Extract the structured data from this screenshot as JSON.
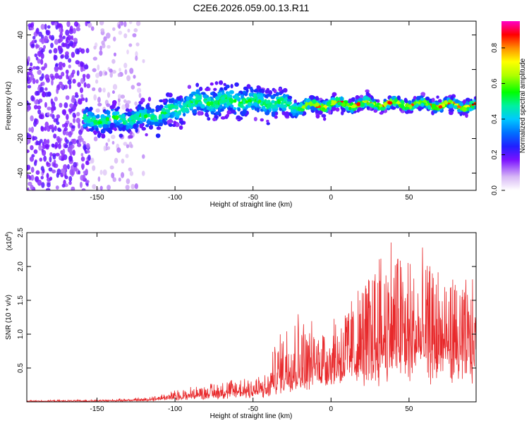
{
  "figure_title": "C2E6.2026.059.00.13.R11",
  "chart_data": [
    {
      "type": "heatmap",
      "xlabel": "Height of straight line (km)",
      "ylabel": "Frequency (Hz)",
      "xlim": [
        -195,
        93
      ],
      "ylim": [
        -50,
        48
      ],
      "xticks": [
        -150,
        -100,
        -50,
        0,
        50
      ],
      "yticks": [
        -40,
        -20,
        0,
        20,
        40
      ],
      "colorbar": {
        "label": "Normalized spectral amplitude",
        "range": [
          0,
          0.95
        ],
        "ticks": [
          0.0,
          0.2,
          0.4,
          0.6,
          0.8
        ]
      },
      "noise_region_x": [
        -195,
        -120
      ],
      "signal_band": [
        {
          "x": -155,
          "center": -10,
          "width": 14
        },
        {
          "x": -120,
          "center": -8,
          "width": 14
        },
        {
          "x": -100,
          "center": -4,
          "width": 16
        },
        {
          "x": -90,
          "center": 1,
          "width": 18
        },
        {
          "x": -60,
          "center": 2,
          "width": 18
        },
        {
          "x": -30,
          "center": 0,
          "width": 16
        },
        {
          "x": -20,
          "center": -2,
          "width": 8
        },
        {
          "x": 0,
          "center": 0,
          "width": 8
        },
        {
          "x": 50,
          "center": 0,
          "width": 7
        },
        {
          "x": 93,
          "center": -1,
          "width": 7
        }
      ]
    },
    {
      "type": "line",
      "xlabel": "Height of straight line (km)",
      "ylabel": "SNR (10 * v/v)",
      "y_scale_label": "(x10",
      "y_scale_exp": "4",
      "y_scale_close": ")",
      "xlim": [
        -195,
        93
      ],
      "ylim": [
        0,
        2.5
      ],
      "xticks": [
        -150,
        -100,
        -50,
        0,
        50
      ],
      "yticks": [
        0.5,
        1.0,
        1.5,
        2.0,
        2.5
      ],
      "series_color": "#e8292b",
      "envelope": [
        {
          "x": -195,
          "base": 0.01,
          "amp": 0.01
        },
        {
          "x": -150,
          "base": 0.01,
          "amp": 0.02
        },
        {
          "x": -120,
          "base": 0.02,
          "amp": 0.04
        },
        {
          "x": -100,
          "base": 0.05,
          "amp": 0.12
        },
        {
          "x": -80,
          "base": 0.08,
          "amp": 0.18
        },
        {
          "x": -60,
          "base": 0.1,
          "amp": 0.28
        },
        {
          "x": -40,
          "base": 0.12,
          "amp": 0.3
        },
        {
          "x": -38,
          "base": 0.2,
          "amp": 0.5
        },
        {
          "x": -25,
          "base": 0.3,
          "amp": 1.2
        },
        {
          "x": -15,
          "base": 0.35,
          "amp": 0.8
        },
        {
          "x": 0,
          "base": 0.45,
          "amp": 0.8
        },
        {
          "x": 20,
          "base": 0.5,
          "amp": 1.3
        },
        {
          "x": 38,
          "base": 0.6,
          "amp": 2.0
        },
        {
          "x": 50,
          "base": 0.6,
          "amp": 1.6
        },
        {
          "x": 70,
          "base": 0.6,
          "amp": 1.4
        },
        {
          "x": 93,
          "base": 0.6,
          "amp": 1.1
        }
      ]
    }
  ]
}
